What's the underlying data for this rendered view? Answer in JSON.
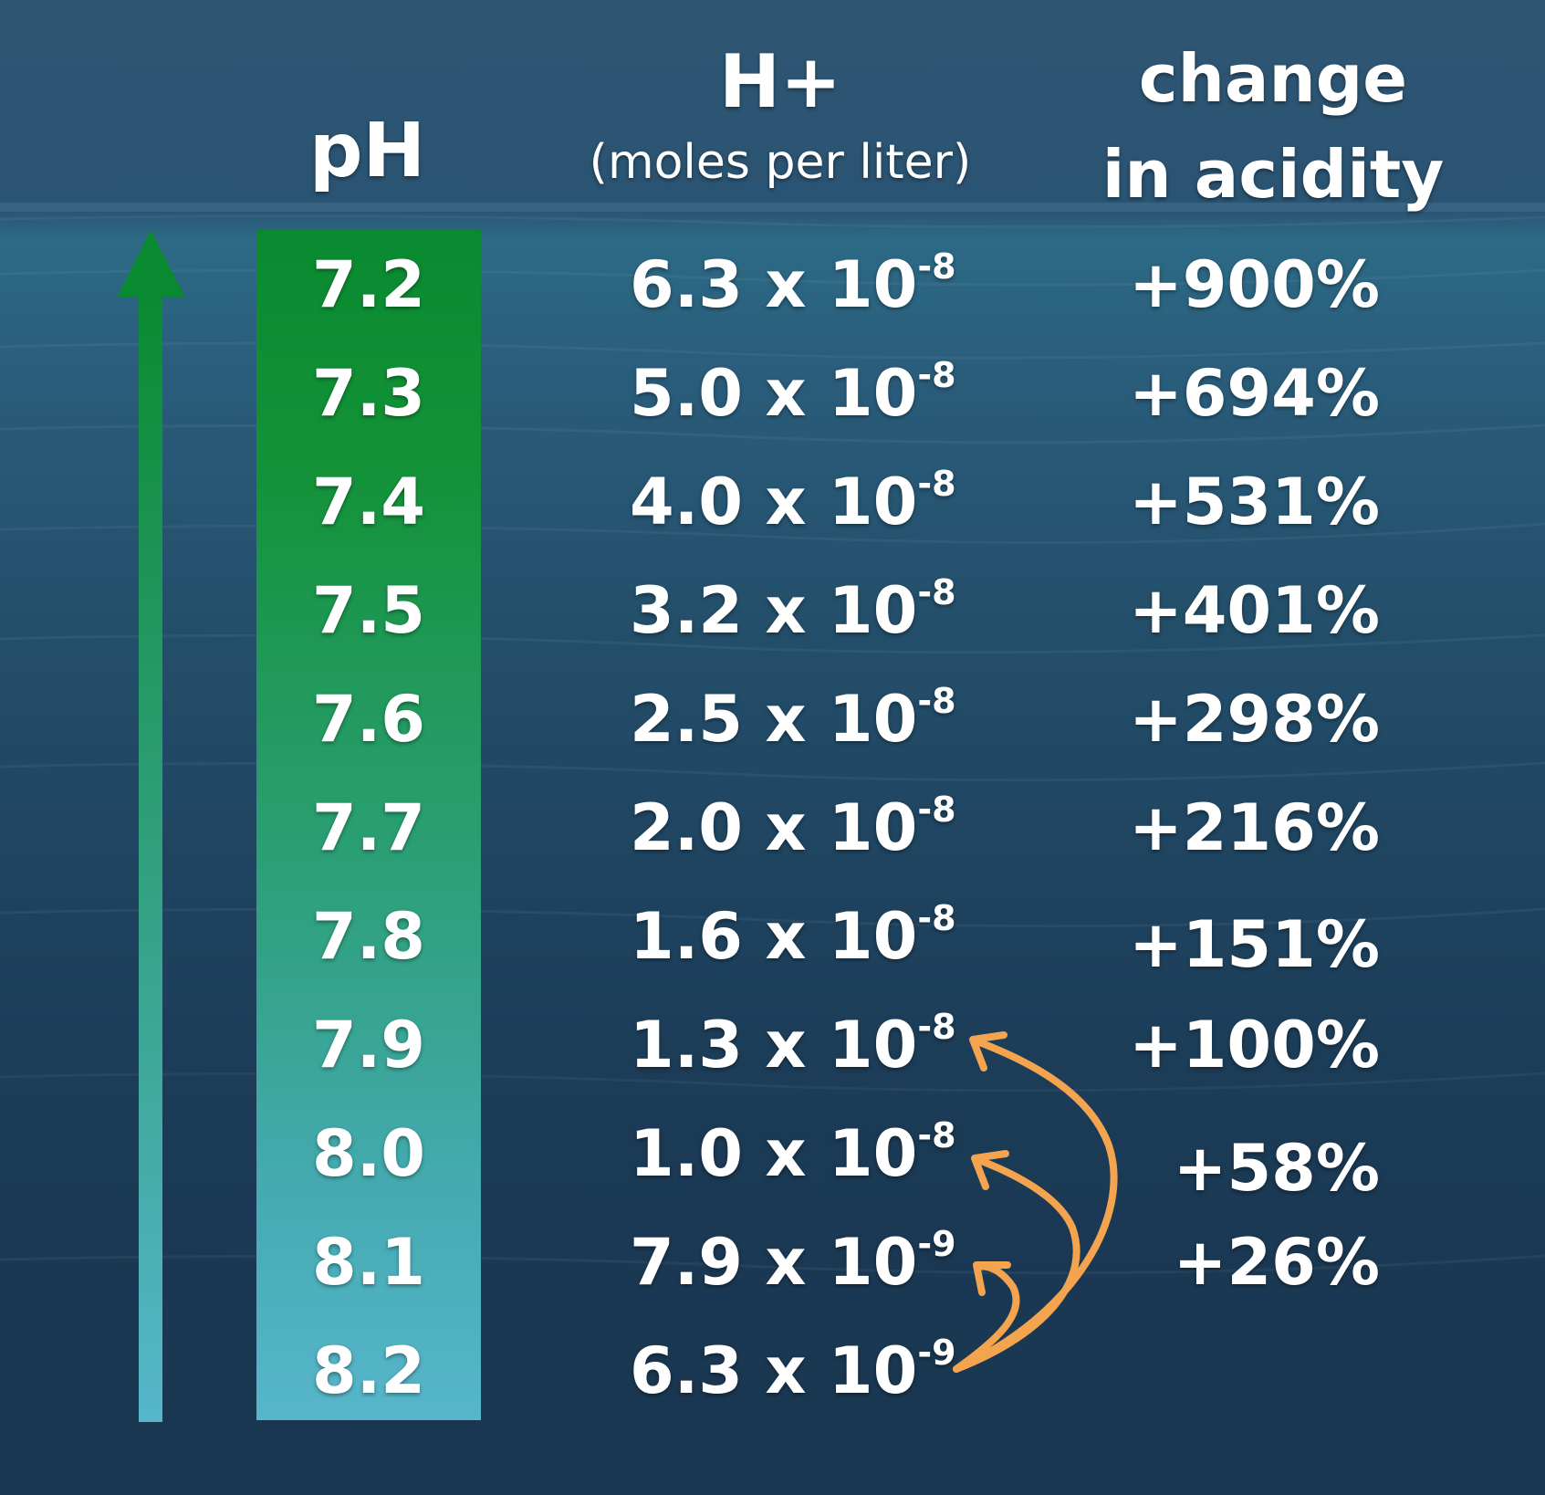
{
  "headers": {
    "ph": "pH",
    "h_plus": "H+",
    "h_plus_unit": "(moles per liter)",
    "change_line1": "change",
    "change_line2": "in acidity"
  },
  "rows": [
    {
      "ph": "7.2",
      "h_mantissa": "6.3 x 10",
      "h_exp": "-8",
      "change": "+900%"
    },
    {
      "ph": "7.3",
      "h_mantissa": "5.0 x 10",
      "h_exp": "-8",
      "change": "+694%"
    },
    {
      "ph": "7.4",
      "h_mantissa": "4.0 x 10",
      "h_exp": "-8",
      "change": "+531%"
    },
    {
      "ph": "7.5",
      "h_mantissa": "3.2 x 10",
      "h_exp": "-8",
      "change": "+401%"
    },
    {
      "ph": "7.6",
      "h_mantissa": "2.5 x 10",
      "h_exp": "-8",
      "change": "+298%"
    },
    {
      "ph": "7.7",
      "h_mantissa": "2.0 x 10",
      "h_exp": "-8",
      "change": "+216%"
    },
    {
      "ph": "7.8",
      "h_mantissa": "1.6 x 10",
      "h_exp": "-8",
      "change": "+151%"
    },
    {
      "ph": "7.9",
      "h_mantissa": "1.3 x 10",
      "h_exp": "-8",
      "change": "+100%"
    },
    {
      "ph": "8.0",
      "h_mantissa": "1.0 x 10",
      "h_exp": "-8",
      "change": "+58%"
    },
    {
      "ph": "8.1",
      "h_mantissa": "7.9 x 10",
      "h_exp": "-9",
      "change": "+26%"
    },
    {
      "ph": "8.2",
      "h_mantissa": "6.3 x 10",
      "h_exp": "-9",
      "change": ""
    }
  ],
  "colors": {
    "arrow_top": "#0a8a30",
    "arrow_bottom": "#57b6cb",
    "curve_arrows": "#f4a34e",
    "text": "#ffffff"
  }
}
